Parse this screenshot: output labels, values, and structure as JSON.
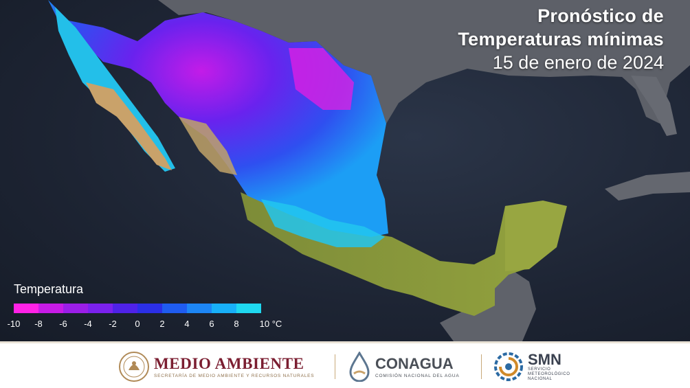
{
  "title": {
    "line1": "Pronóstico de",
    "line2": "Temperaturas mínimas",
    "date": "15 de enero de 2024"
  },
  "legend": {
    "title": "Temperatura",
    "ticks": [
      "-10",
      "-8",
      "-6",
      "-4",
      "-2",
      "0",
      "2",
      "4",
      "6",
      "8",
      "10 °C"
    ],
    "colors": [
      "#ff22e6",
      "#c71be6",
      "#9b1ee8",
      "#7a21ee",
      "#4f22e8",
      "#2b2fe6",
      "#1f5cf0",
      "#1d86f5",
      "#18b0f8",
      "#1fd8f0"
    ]
  },
  "colors": {
    "ocean": "#1d2433",
    "land_outside": "#5a5e66",
    "land_warm": "#8a9a3c",
    "land_desert": "#c9a26a"
  },
  "footer": {
    "medio_ambiente": {
      "name": "MEDIO AMBIENTE",
      "subtitle": "SECRETARÍA DE MEDIO AMBIENTE Y RECURSOS NATURALES"
    },
    "conagua": {
      "name": "CONAGUA",
      "subtitle": "COMISIÓN NACIONAL DEL AGUA"
    },
    "smn": {
      "name": "SMN",
      "subtitle_lines": [
        "SERVICIO",
        "METEOROLÓGICO",
        "NACIONAL"
      ]
    }
  }
}
